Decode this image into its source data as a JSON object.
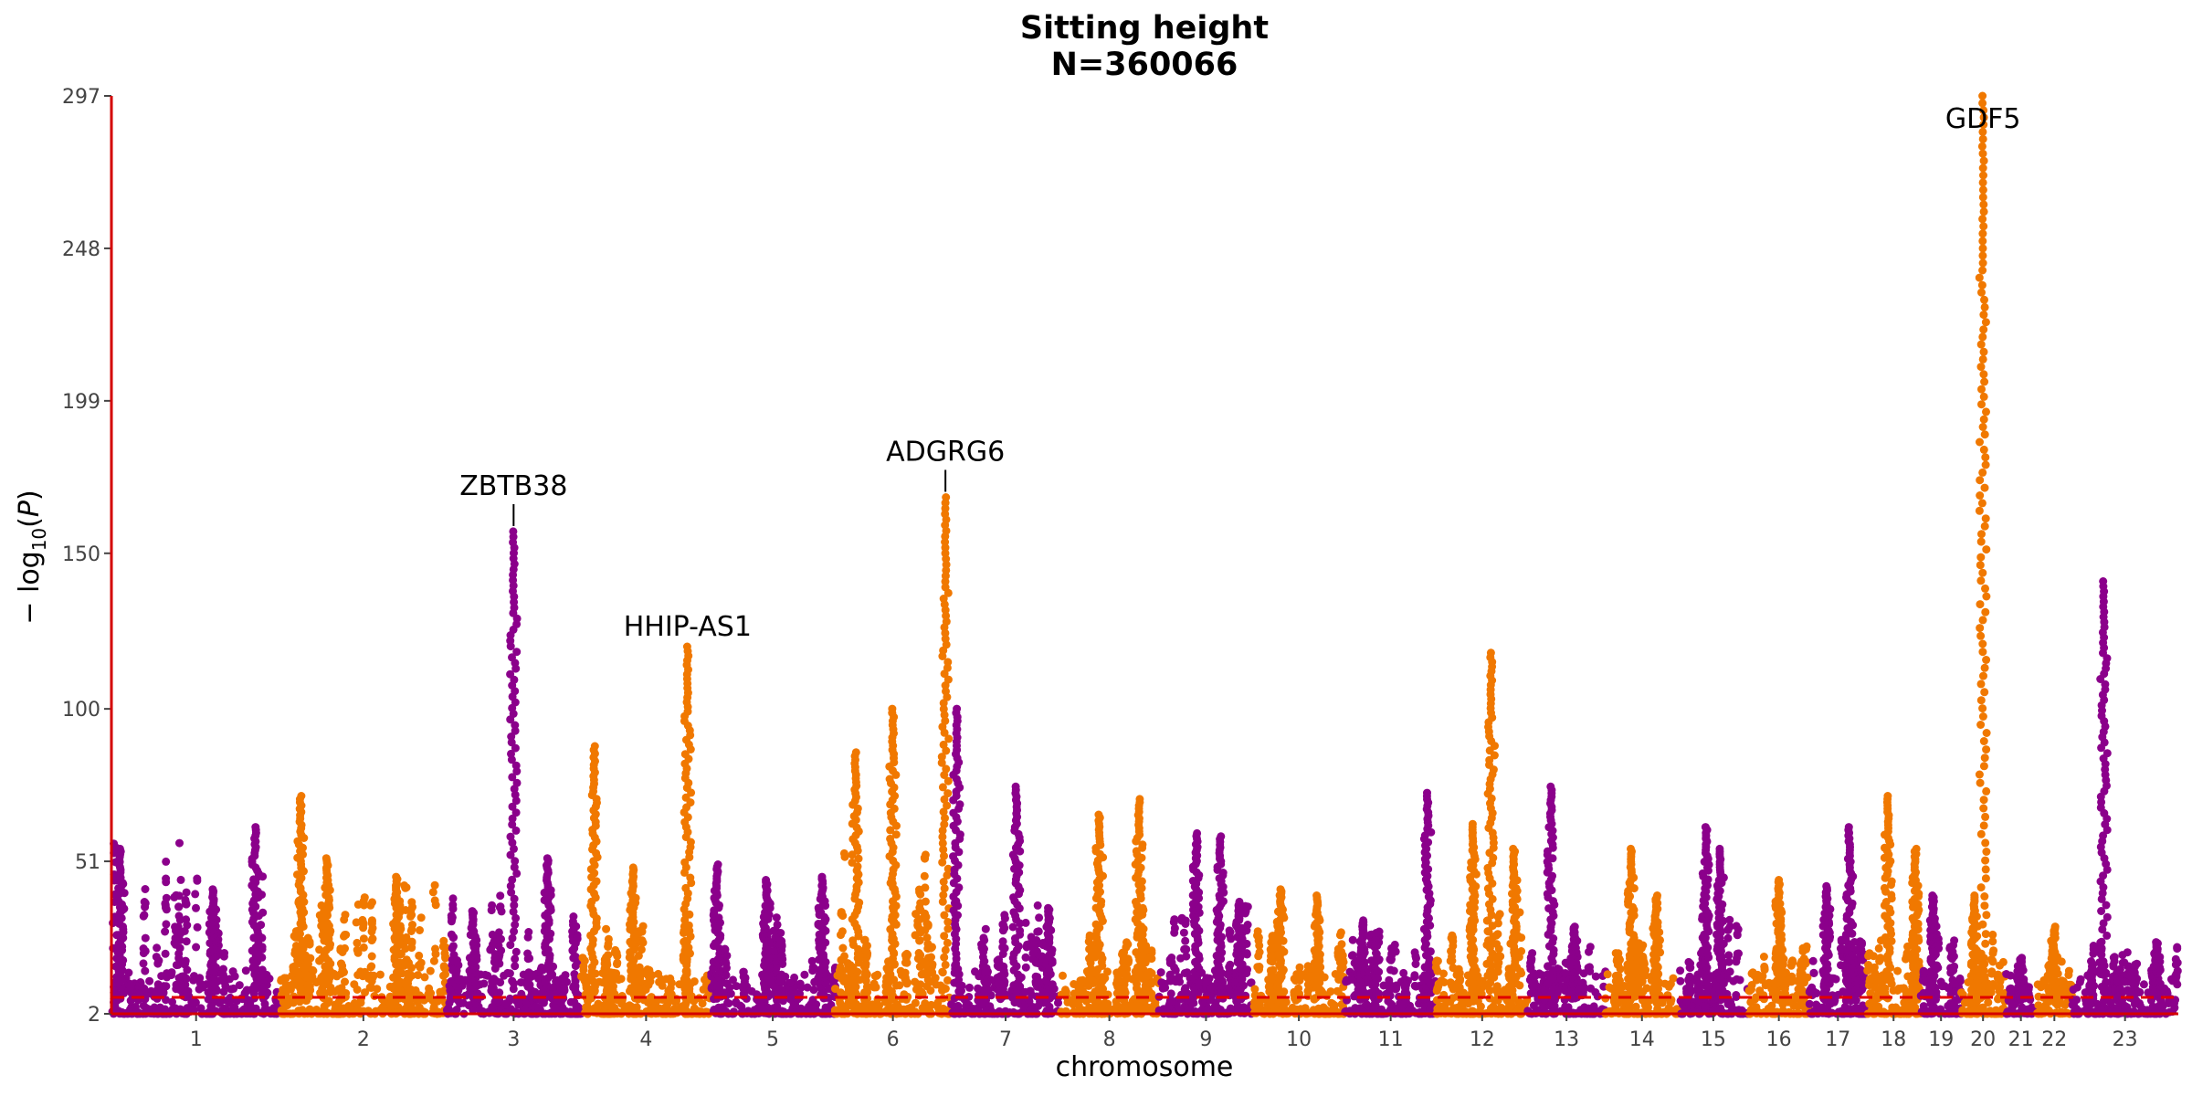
{
  "chart_data": {
    "type": "scatter",
    "title": "Sitting height",
    "subtitle": "N=360066",
    "xlabel": "chromosome",
    "ylabel_main": "− log",
    "ylabel_sub": "10",
    "ylabel_paren_open": "(",
    "ylabel_var": "P",
    "ylabel_paren_close": ")",
    "ylim": [
      2,
      297
    ],
    "yticks": [
      "2",
      "51",
      "100",
      "150",
      "199",
      "248",
      "297"
    ],
    "ytick_values": [
      2,
      51,
      100,
      150,
      199,
      248,
      297
    ],
    "significance_threshold": 7.3,
    "colors": {
      "odd": "#8b008b",
      "even": "#f07800",
      "threshold": "#e00000",
      "axis": "#d40000"
    },
    "chromosomes": [
      {
        "label": "1",
        "peaks": [
          [
            0.05,
            55
          ],
          [
            0.85,
            62
          ],
          [
            0.6,
            42
          ]
        ],
        "mid": 58
      },
      {
        "label": "2",
        "peaks": [
          [
            0.12,
            72
          ],
          [
            0.28,
            52
          ],
          [
            0.7,
            46
          ]
        ],
        "mid": 45
      },
      {
        "label": "3",
        "peaks": [
          [
            0.5,
            157
          ],
          [
            0.75,
            52
          ],
          [
            0.2,
            35
          ]
        ],
        "mid": 40
      },
      {
        "label": "4",
        "peaks": [
          [
            0.1,
            88
          ],
          [
            0.4,
            49
          ],
          [
            0.82,
            120
          ]
        ],
        "mid": 35
      },
      {
        "label": "5",
        "peaks": [
          [
            0.05,
            50
          ],
          [
            0.45,
            45
          ],
          [
            0.9,
            46
          ]
        ],
        "mid": 35
      },
      {
        "label": "6",
        "peaks": [
          [
            0.18,
            86
          ],
          [
            0.5,
            100
          ],
          [
            0.95,
            168
          ]
        ],
        "mid": 55
      },
      {
        "label": "7",
        "peaks": [
          [
            0.05,
            100
          ],
          [
            0.6,
            75
          ],
          [
            0.9,
            36
          ]
        ],
        "mid": 40
      },
      {
        "label": "8",
        "peaks": [
          [
            0.4,
            66
          ],
          [
            0.8,
            71
          ]
        ],
        "mid": 35
      },
      {
        "label": "9",
        "peaks": [
          [
            0.4,
            60
          ],
          [
            0.65,
            59
          ],
          [
            0.85,
            38
          ]
        ],
        "mid": 35
      },
      {
        "label": "10",
        "peaks": [
          [
            0.3,
            42
          ],
          [
            0.7,
            40
          ]
        ],
        "mid": 30
      },
      {
        "label": "11",
        "peaks": [
          [
            0.2,
            32
          ],
          [
            0.9,
            73
          ]
        ],
        "mid": 28
      },
      {
        "label": "12",
        "peaks": [
          [
            0.4,
            63
          ],
          [
            0.6,
            118
          ],
          [
            0.85,
            55
          ]
        ],
        "mid": 35
      },
      {
        "label": "13",
        "peaks": [
          [
            0.3,
            75
          ],
          [
            0.6,
            30
          ]
        ],
        "mid": 25
      },
      {
        "label": "14",
        "peaks": [
          [
            0.35,
            55
          ],
          [
            0.7,
            40
          ]
        ],
        "mid": 28
      },
      {
        "label": "15",
        "peaks": [
          [
            0.4,
            62
          ],
          [
            0.6,
            55
          ]
        ],
        "mid": 32
      },
      {
        "label": "16",
        "peaks": [
          [
            0.5,
            45
          ]
        ],
        "mid": 25
      },
      {
        "label": "17",
        "peaks": [
          [
            0.3,
            43
          ],
          [
            0.7,
            62
          ]
        ],
        "mid": 35
      },
      {
        "label": "18",
        "peaks": [
          [
            0.4,
            72
          ],
          [
            0.9,
            55
          ]
        ],
        "mid": 28
      },
      {
        "label": "19",
        "peaks": [
          [
            0.3,
            40
          ]
        ],
        "mid": 25
      },
      {
        "label": "20",
        "peaks": [
          [
            0.5,
            297
          ],
          [
            0.3,
            40
          ]
        ],
        "mid": 30
      },
      {
        "label": "21",
        "peaks": [
          [
            0.5,
            20
          ]
        ],
        "mid": 12
      },
      {
        "label": "22",
        "peaks": [
          [
            0.5,
            30
          ]
        ],
        "mid": 20
      },
      {
        "label": "23",
        "peaks": [
          [
            0.3,
            141
          ],
          [
            0.8,
            25
          ]
        ],
        "mid": 25
      }
    ],
    "annotations": [
      {
        "label": "ZBTB38",
        "chrom": 3,
        "frac": 0.5,
        "value": 157,
        "line": true
      },
      {
        "label": "HHIP-AS1",
        "chrom": 4,
        "frac": 0.82,
        "value": 120,
        "line": false
      },
      {
        "label": "ADGRG6",
        "chrom": 6,
        "frac": 0.95,
        "value": 168,
        "line": true
      },
      {
        "label": "GDF5",
        "chrom": 20,
        "frac": 0.5,
        "value": 297,
        "line": false
      }
    ]
  }
}
